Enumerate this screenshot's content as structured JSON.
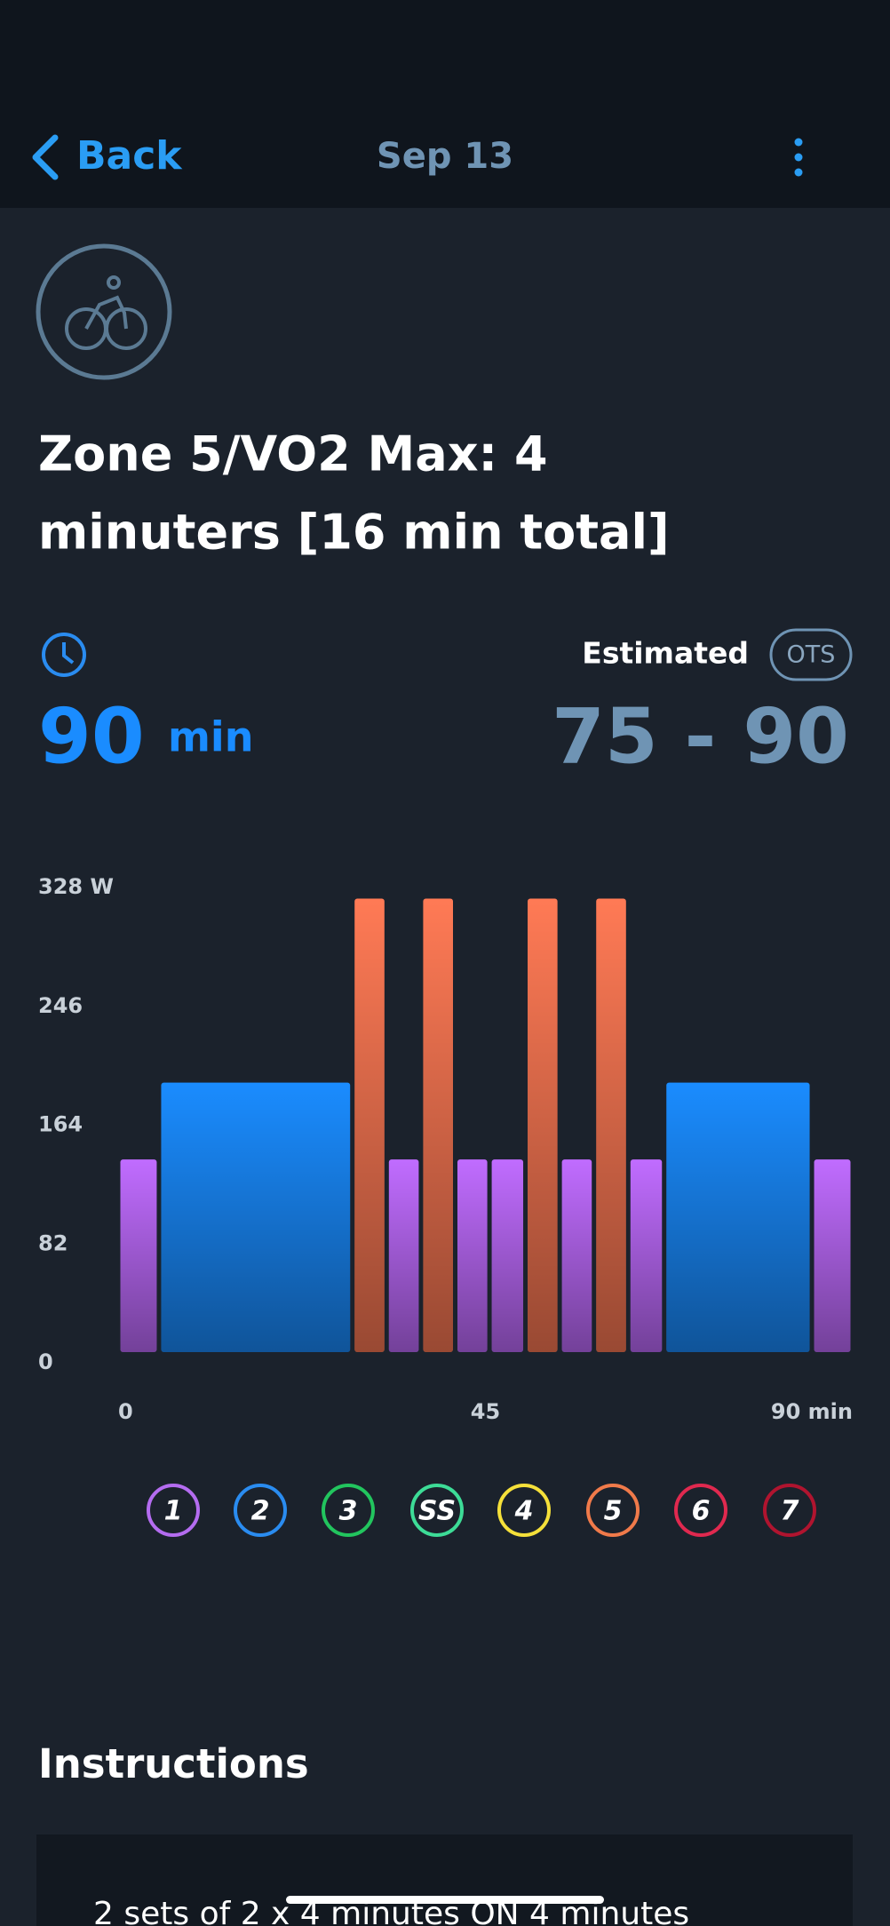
{
  "header": {
    "back": "Back",
    "date": "Sep 13"
  },
  "workout": {
    "title_lines": [
      "Zone 5/VO2 Max: 4",
      "minuters [16 min total]"
    ],
    "duration": {
      "value": "90",
      "unit": "min"
    },
    "estimated": {
      "label": "Estimated",
      "badge": "OTS",
      "range": "75 - 90"
    }
  },
  "chart_data": {
    "type": "bar",
    "x_start": [
      0,
      5,
      28.7,
      32.9,
      37.1,
      41.3,
      45.5,
      49.9,
      54.1,
      58.3,
      62.5,
      66.9,
      85
    ],
    "x_end": [
      5,
      28.7,
      32.9,
      37.1,
      41.3,
      45.5,
      49.9,
      54.1,
      58.3,
      62.5,
      66.9,
      85,
      90
    ],
    "values": [
      133,
      186,
      313,
      133,
      313,
      133,
      133,
      313,
      133,
      313,
      133,
      186,
      133
    ],
    "colors": [
      "#c06cff",
      "#1a8cff",
      "#ff7a55",
      "#c06cff",
      "#ff7a55",
      "#c06cff",
      "#c06cff",
      "#ff7a55",
      "#c06cff",
      "#ff7a55",
      "#c06cff",
      "#1a8cff",
      "#c06cff"
    ],
    "xlim": [
      0,
      90
    ],
    "xticks": [
      0,
      45,
      {
        "value": 90,
        "label": "90 min"
      }
    ],
    "ylim": [
      0,
      328
    ],
    "yticks": [
      0,
      82,
      164,
      246,
      {
        "value": 328,
        "label": "328 W"
      }
    ]
  },
  "zones": {
    "labels": [
      "1",
      "2",
      "3",
      "SS",
      "4",
      "5",
      "6",
      "7"
    ],
    "colors": [
      "#b46cf0",
      "#2a8cf0",
      "#22c55e",
      "#3ddc97",
      "#f5e03a",
      "#f07a4a",
      "#e0294f",
      "#b0142f"
    ]
  },
  "instructions": {
    "heading": "Instructions",
    "text": "2 sets of 2 x 4 minutes ON 4 minutes"
  }
}
